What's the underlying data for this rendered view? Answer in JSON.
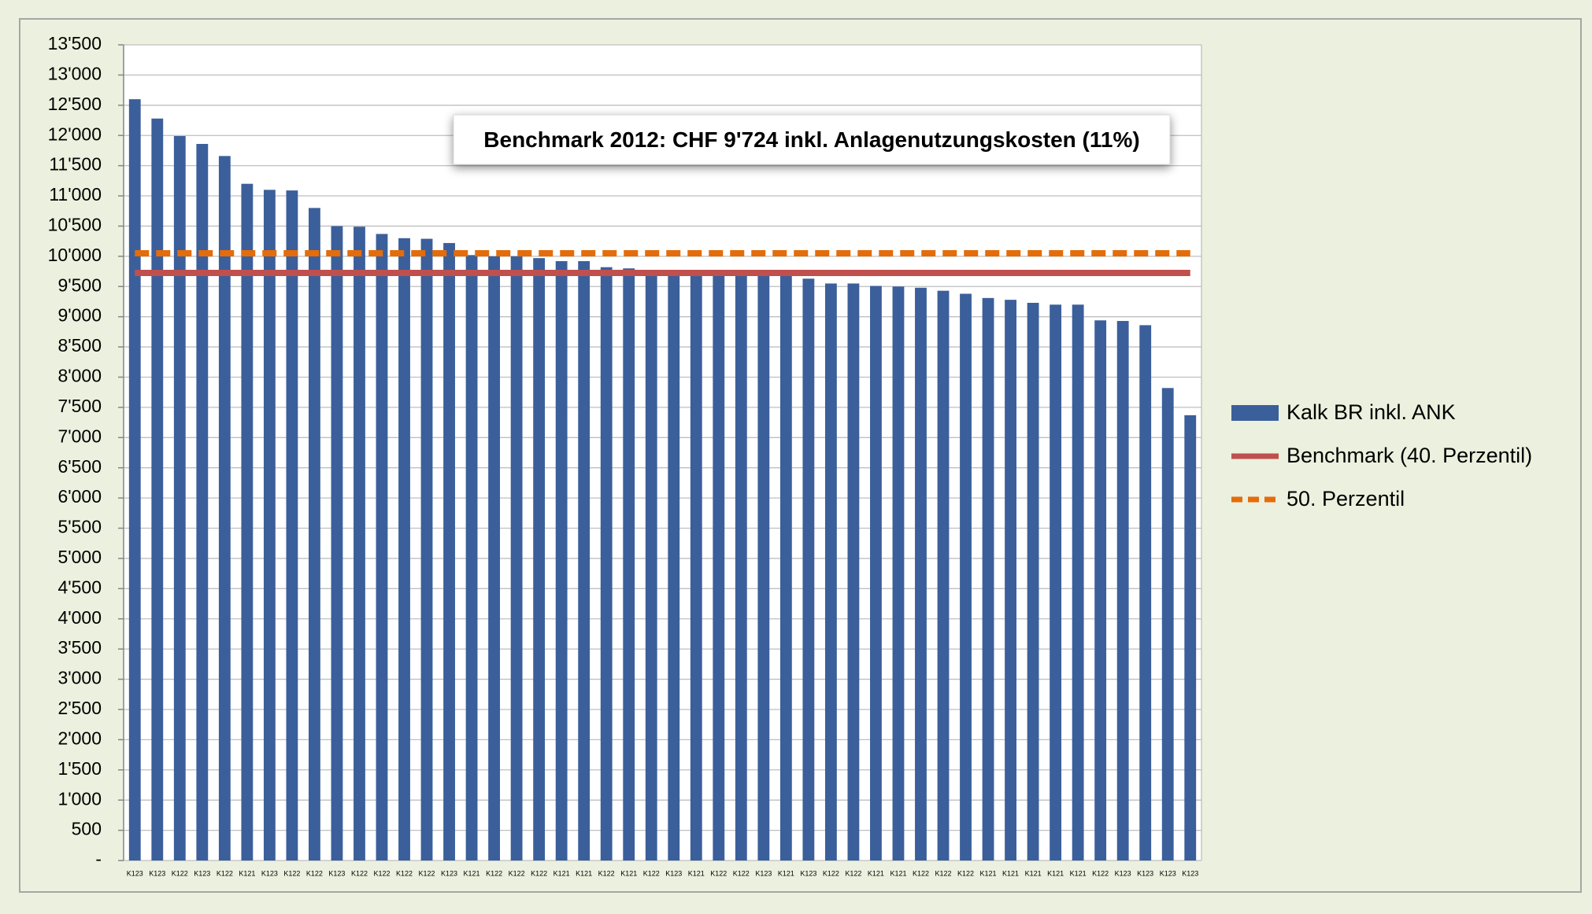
{
  "chart_data": {
    "type": "bar",
    "annotation": "Benchmark 2012: CHF 9'724 inkl. Anlagenutzungskosten (11%)",
    "categories": [
      "K123",
      "K123",
      "K122",
      "K123",
      "K122",
      "K121",
      "K123",
      "K122",
      "K122",
      "K123",
      "K122",
      "K122",
      "K122",
      "K122",
      "K123",
      "K121",
      "K122",
      "K122",
      "K122",
      "K121",
      "K121",
      "K122",
      "K121",
      "K122",
      "K123",
      "K121",
      "K122",
      "K122",
      "K123",
      "K121",
      "K123",
      "K122",
      "K122",
      "K121",
      "K121",
      "K122",
      "K122",
      "K122",
      "K121",
      "K121",
      "K121",
      "K121",
      "K121",
      "K122",
      "K123",
      "K123",
      "K123",
      "K123"
    ],
    "series": [
      {
        "name": "Kalk BR inkl. ANK",
        "type": "bar",
        "color": "#3b5f9b",
        "values": [
          12600,
          12280,
          11990,
          11860,
          11660,
          11200,
          11100,
          11090,
          10800,
          10500,
          10490,
          10370,
          10300,
          10290,
          10220,
          10020,
          10000,
          10000,
          9970,
          9920,
          9920,
          9820,
          9800,
          9720,
          9720,
          9700,
          9700,
          9690,
          9690,
          9680,
          9630,
          9550,
          9550,
          9510,
          9500,
          9480,
          9430,
          9380,
          9310,
          9280,
          9230,
          9200,
          9200,
          8940,
          8930,
          8860,
          7820,
          7370
        ]
      },
      {
        "name": "Benchmark (40. Perzentil)",
        "type": "line",
        "color": "#c0504d",
        "values": [
          9724,
          9724,
          9724,
          9724,
          9724,
          9724,
          9724,
          9724,
          9724,
          9724,
          9724,
          9724,
          9724,
          9724,
          9724,
          9724,
          9724,
          9724,
          9724,
          9724,
          9724,
          9724,
          9724,
          9724,
          9724,
          9724,
          9724,
          9724,
          9724,
          9724,
          9724,
          9724,
          9724,
          9724,
          9724,
          9724,
          9724,
          9724,
          9724,
          9724,
          9724,
          9724,
          9724,
          9724,
          9724,
          9724,
          9724,
          9724
        ]
      },
      {
        "name": "50. Perzentil",
        "type": "line",
        "dashed": true,
        "color": "#e46c0a",
        "values": [
          10050,
          10050,
          10050,
          10050,
          10050,
          10050,
          10050,
          10050,
          10050,
          10050,
          10050,
          10050,
          10050,
          10050,
          10050,
          10050,
          10050,
          10050,
          10050,
          10050,
          10050,
          10050,
          10050,
          10050,
          10050,
          10050,
          10050,
          10050,
          10050,
          10050,
          10050,
          10050,
          10050,
          10050,
          10050,
          10050,
          10050,
          10050,
          10050,
          10050,
          10050,
          10050,
          10050,
          10050,
          10050,
          10050,
          10050,
          10050
        ]
      }
    ],
    "ylim": [
      0,
      13500
    ],
    "yticks": [
      {
        "value": 0,
        "label": "-"
      },
      500,
      {
        "value": 1000,
        "label": "1'000"
      },
      {
        "value": 1500,
        "label": "1'500"
      },
      {
        "value": 2000,
        "label": "2'000"
      },
      {
        "value": 2500,
        "label": "2'500"
      },
      {
        "value": 3000,
        "label": "3'000"
      },
      {
        "value": 3500,
        "label": "3'500"
      },
      {
        "value": 4000,
        "label": "4'000"
      },
      {
        "value": 4500,
        "label": "4'500"
      },
      {
        "value": 5000,
        "label": "5'000"
      },
      {
        "value": 5500,
        "label": "5'500"
      },
      {
        "value": 6000,
        "label": "6'000"
      },
      {
        "value": 6500,
        "label": "6'500"
      },
      {
        "value": 7000,
        "label": "7'000"
      },
      {
        "value": 7500,
        "label": "7'500"
      },
      {
        "value": 8000,
        "label": "8'000"
      },
      {
        "value": 8500,
        "label": "8'500"
      },
      {
        "value": 9000,
        "label": "9'000"
      },
      {
        "value": 9500,
        "label": "9'500"
      },
      {
        "value": 10000,
        "label": "10'000"
      },
      {
        "value": 10500,
        "label": "10'500"
      },
      {
        "value": 11000,
        "label": "11'000"
      },
      {
        "value": 11500,
        "label": "11'500"
      },
      {
        "value": 12000,
        "label": "12'000"
      },
      {
        "value": 12500,
        "label": "12'500"
      },
      {
        "value": 13000,
        "label": "13'000"
      },
      {
        "value": 13500,
        "label": "13'500"
      }
    ],
    "grid": true,
    "legend": "right"
  }
}
